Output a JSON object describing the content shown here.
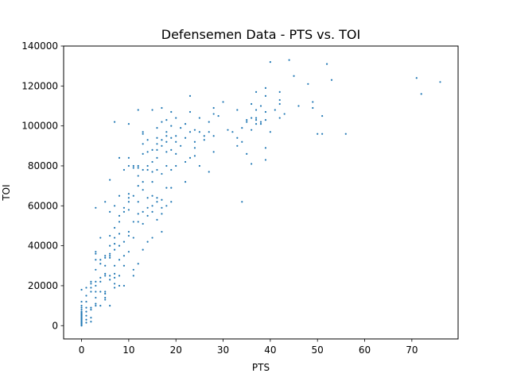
{
  "chart_data": {
    "type": "scatter",
    "title": "Defensemen Data - PTS vs. TOI",
    "xlabel": "PTS",
    "ylabel": "TOI",
    "xlim": [
      -3.8,
      79.8
    ],
    "ylim": [
      -6650,
      140000
    ],
    "xticks": [
      0,
      10,
      20,
      30,
      40,
      50,
      60,
      70
    ],
    "yticks": [
      0,
      20000,
      40000,
      60000,
      80000,
      100000,
      120000,
      140000
    ],
    "grid": false,
    "legend": "none",
    "point_color": "#1f77b4",
    "series": [
      {
        "points": [
          [
            0,
            0
          ],
          [
            0,
            500
          ],
          [
            0,
            1000
          ],
          [
            0,
            1500
          ],
          [
            0,
            2000
          ],
          [
            0,
            2500
          ],
          [
            0,
            3000
          ],
          [
            0,
            3500
          ],
          [
            0,
            4000
          ],
          [
            0,
            4500
          ],
          [
            0,
            5000
          ],
          [
            0,
            5500
          ],
          [
            0,
            6000
          ],
          [
            0,
            6500
          ],
          [
            0,
            7000
          ],
          [
            0,
            8000
          ],
          [
            0,
            9000
          ],
          [
            0,
            10000
          ],
          [
            0,
            12000
          ],
          [
            0,
            18000
          ],
          [
            1,
            1500
          ],
          [
            1,
            3000
          ],
          [
            1,
            5000
          ],
          [
            1,
            7000
          ],
          [
            1,
            9000
          ],
          [
            1,
            12000
          ],
          [
            1,
            15000
          ],
          [
            1,
            19000
          ],
          [
            2,
            2000
          ],
          [
            2,
            4000
          ],
          [
            2,
            8000
          ],
          [
            2,
            9000
          ],
          [
            2,
            17000
          ],
          [
            2,
            19000
          ],
          [
            2,
            21000
          ],
          [
            2,
            22000
          ],
          [
            3,
            10000
          ],
          [
            3,
            11000
          ],
          [
            3,
            14000
          ],
          [
            3,
            17000
          ],
          [
            3,
            20000
          ],
          [
            3,
            22000
          ],
          [
            3,
            28000
          ],
          [
            3,
            33000
          ],
          [
            3,
            36000
          ],
          [
            3,
            37000
          ],
          [
            3,
            59000
          ],
          [
            4,
            10000
          ],
          [
            4,
            17000
          ],
          [
            4,
            22000
          ],
          [
            4,
            24000
          ],
          [
            4,
            31000
          ],
          [
            4,
            33000
          ],
          [
            4,
            44000
          ],
          [
            5,
            13000
          ],
          [
            5,
            14000
          ],
          [
            5,
            16000
          ],
          [
            5,
            17000
          ],
          [
            5,
            25000
          ],
          [
            5,
            26000
          ],
          [
            5,
            30000
          ],
          [
            5,
            34000
          ],
          [
            5,
            35000
          ],
          [
            5,
            62000
          ],
          [
            6,
            10000
          ],
          [
            6,
            23000
          ],
          [
            6,
            25000
          ],
          [
            6,
            34000
          ],
          [
            6,
            35000
          ],
          [
            6,
            36000
          ],
          [
            6,
            40000
          ],
          [
            6,
            45000
          ],
          [
            6,
            57000
          ],
          [
            6,
            73000
          ],
          [
            7,
            19000
          ],
          [
            7,
            21000
          ],
          [
            7,
            24000
          ],
          [
            7,
            26000
          ],
          [
            7,
            30000
          ],
          [
            7,
            38000
          ],
          [
            7,
            41000
          ],
          [
            7,
            44000
          ],
          [
            7,
            49000
          ],
          [
            7,
            60000
          ],
          [
            7,
            102000
          ],
          [
            8,
            20000
          ],
          [
            8,
            25000
          ],
          [
            8,
            33000
          ],
          [
            8,
            40000
          ],
          [
            8,
            46000
          ],
          [
            8,
            52000
          ],
          [
            8,
            55000
          ],
          [
            8,
            65000
          ],
          [
            8,
            84000
          ],
          [
            9,
            20000
          ],
          [
            9,
            30000
          ],
          [
            9,
            35000
          ],
          [
            9,
            42000
          ],
          [
            9,
            57000
          ],
          [
            9,
            59000
          ],
          [
            9,
            78000
          ],
          [
            10,
            37000
          ],
          [
            10,
            45000
          ],
          [
            10,
            47000
          ],
          [
            10,
            58000
          ],
          [
            10,
            62000
          ],
          [
            10,
            64000
          ],
          [
            10,
            66000
          ],
          [
            10,
            80000
          ],
          [
            10,
            84000
          ],
          [
            10,
            101000
          ],
          [
            11,
            25000
          ],
          [
            11,
            28000
          ],
          [
            11,
            44000
          ],
          [
            11,
            52000
          ],
          [
            11,
            65000
          ],
          [
            11,
            79000
          ],
          [
            11,
            80000
          ],
          [
            12,
            31000
          ],
          [
            12,
            52000
          ],
          [
            12,
            56000
          ],
          [
            12,
            62000
          ],
          [
            12,
            70000
          ],
          [
            12,
            75000
          ],
          [
            12,
            79000
          ],
          [
            12,
            80000
          ],
          [
            12,
            108000
          ],
          [
            13,
            38000
          ],
          [
            13,
            51000
          ],
          [
            13,
            57000
          ],
          [
            13,
            68000
          ],
          [
            13,
            72000
          ],
          [
            13,
            78000
          ],
          [
            13,
            86000
          ],
          [
            13,
            91000
          ],
          [
            13,
            96000
          ],
          [
            13,
            97000
          ],
          [
            14,
            42000
          ],
          [
            14,
            55000
          ],
          [
            14,
            59000
          ],
          [
            14,
            64000
          ],
          [
            14,
            78000
          ],
          [
            14,
            80000
          ],
          [
            14,
            87000
          ],
          [
            14,
            93000
          ],
          [
            15,
            44000
          ],
          [
            15,
            57000
          ],
          [
            15,
            60000
          ],
          [
            15,
            65000
          ],
          [
            15,
            72000
          ],
          [
            15,
            77000
          ],
          [
            15,
            82000
          ],
          [
            15,
            88000
          ],
          [
            15,
            108000
          ],
          [
            16,
            53000
          ],
          [
            16,
            62000
          ],
          [
            16,
            64000
          ],
          [
            16,
            78000
          ],
          [
            16,
            84000
          ],
          [
            16,
            88000
          ],
          [
            16,
            91000
          ],
          [
            16,
            94000
          ],
          [
            16,
            99000
          ],
          [
            17,
            47000
          ],
          [
            17,
            56000
          ],
          [
            17,
            59000
          ],
          [
            17,
            63000
          ],
          [
            17,
            76000
          ],
          [
            17,
            90000
          ],
          [
            17,
            93000
          ],
          [
            17,
            102000
          ],
          [
            17,
            109000
          ],
          [
            18,
            60000
          ],
          [
            18,
            69000
          ],
          [
            18,
            80000
          ],
          [
            18,
            87000
          ],
          [
            18,
            92000
          ],
          [
            18,
            95000
          ],
          [
            18,
            97000
          ],
          [
            18,
            103000
          ],
          [
            19,
            62000
          ],
          [
            19,
            69000
          ],
          [
            19,
            78000
          ],
          [
            19,
            88000
          ],
          [
            19,
            94000
          ],
          [
            19,
            100000
          ],
          [
            19,
            107000
          ],
          [
            20,
            80000
          ],
          [
            20,
            86000
          ],
          [
            20,
            92000
          ],
          [
            20,
            95000
          ],
          [
            20,
            104000
          ],
          [
            21,
            90000
          ],
          [
            21,
            99000
          ],
          [
            22,
            72000
          ],
          [
            22,
            82000
          ],
          [
            22,
            94000
          ],
          [
            22,
            101000
          ],
          [
            23,
            84000
          ],
          [
            23,
            97000
          ],
          [
            23,
            107000
          ],
          [
            23,
            115000
          ],
          [
            24,
            85000
          ],
          [
            24,
            89000
          ],
          [
            24,
            92000
          ],
          [
            24,
            98000
          ],
          [
            25,
            80000
          ],
          [
            25,
            97000
          ],
          [
            25,
            104000
          ],
          [
            26,
            93000
          ],
          [
            26,
            95000
          ],
          [
            27,
            77000
          ],
          [
            27,
            97000
          ],
          [
            27,
            102000
          ],
          [
            28,
            87000
          ],
          [
            28,
            95000
          ],
          [
            28,
            106000
          ],
          [
            28,
            109000
          ],
          [
            29,
            105000
          ],
          [
            30,
            112000
          ],
          [
            31,
            98000
          ],
          [
            32,
            97000
          ],
          [
            33,
            90000
          ],
          [
            33,
            94000
          ],
          [
            33,
            108000
          ],
          [
            34,
            62000
          ],
          [
            34,
            92000
          ],
          [
            34,
            99000
          ],
          [
            35,
            86000
          ],
          [
            35,
            102000
          ],
          [
            35,
            103000
          ],
          [
            36,
            81000
          ],
          [
            36,
            98000
          ],
          [
            36,
            104000
          ],
          [
            36,
            111000
          ],
          [
            37,
            101000
          ],
          [
            37,
            103000
          ],
          [
            37,
            104000
          ],
          [
            37,
            108000
          ],
          [
            37,
            117000
          ],
          [
            38,
            101000
          ],
          [
            38,
            102000
          ],
          [
            38,
            110000
          ],
          [
            39,
            83000
          ],
          [
            39,
            89000
          ],
          [
            39,
            103000
          ],
          [
            39,
            107000
          ],
          [
            39,
            115000
          ],
          [
            39,
            119000
          ],
          [
            40,
            97000
          ],
          [
            40,
            132000
          ],
          [
            41,
            108000
          ],
          [
            42,
            104000
          ],
          [
            42,
            111000
          ],
          [
            42,
            113000
          ],
          [
            42,
            117000
          ],
          [
            43,
            106000
          ],
          [
            44,
            133000
          ],
          [
            45,
            125000
          ],
          [
            46,
            110000
          ],
          [
            48,
            121000
          ],
          [
            49,
            109000
          ],
          [
            49,
            112000
          ],
          [
            50,
            96000
          ],
          [
            51,
            96000
          ],
          [
            51,
            105000
          ],
          [
            52,
            131000
          ],
          [
            53,
            123000
          ],
          [
            56,
            96000
          ],
          [
            71,
            124000
          ],
          [
            72,
            116000
          ],
          [
            76,
            122000
          ]
        ]
      }
    ]
  }
}
